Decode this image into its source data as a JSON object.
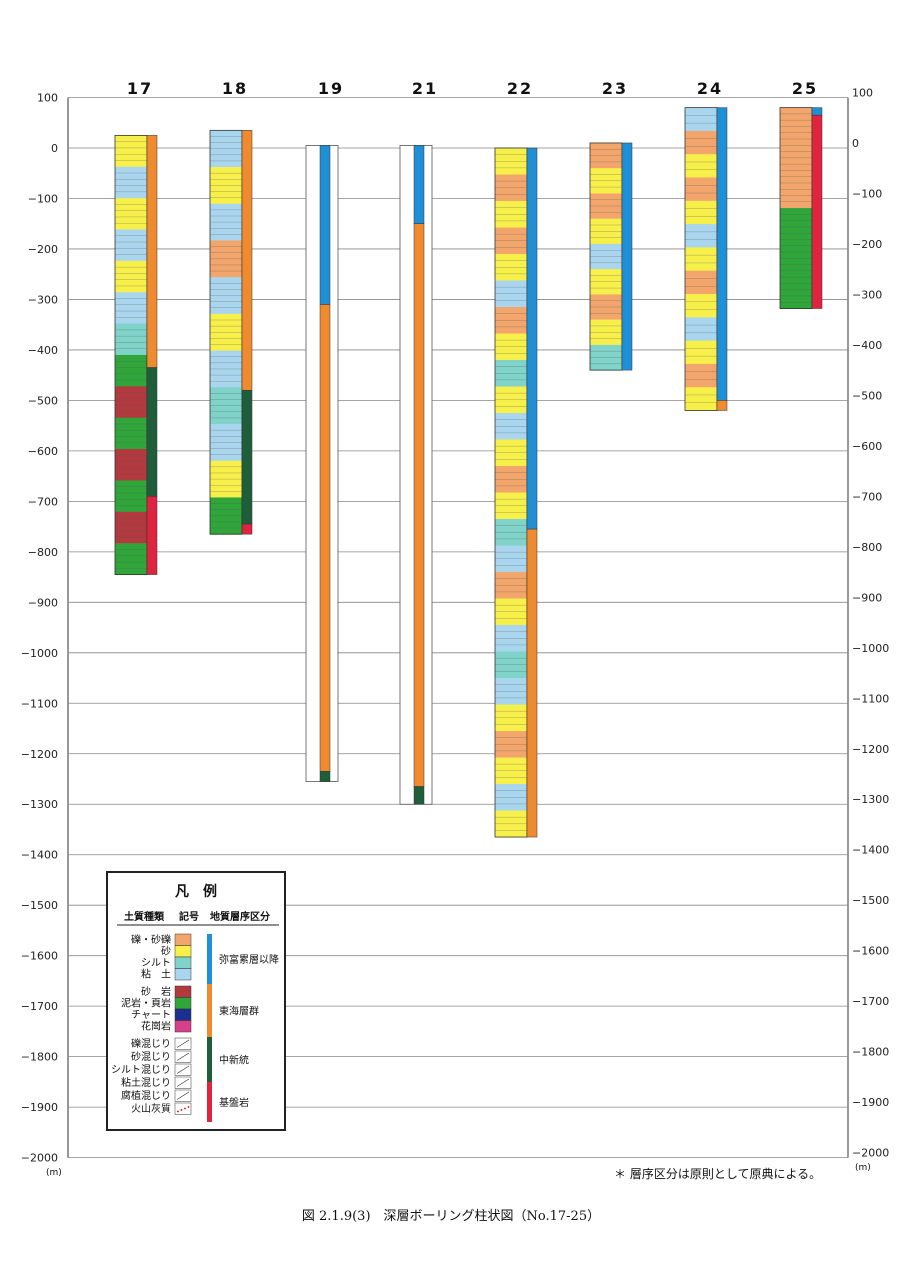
{
  "figure": {
    "caption": "図 2.1.9(3)　深層ボーリング柱状図（No.17-25）",
    "footnote": "＊ 層序区分は原則として原典による。",
    "unit_left": "(m)",
    "unit_right": "(m)"
  },
  "axis": {
    "ticks_left": [
      "100",
      "0",
      "−100",
      "−200",
      "−300",
      "−400",
      "−500",
      "−600",
      "−700",
      "−800",
      "−900",
      "−1000",
      "−1100",
      "−1200",
      "−1300",
      "−1400",
      "−1500",
      "−1600",
      "−1700",
      "−1800",
      "−1900",
      "−2000"
    ],
    "ticks_right": [
      "100",
      "0",
      "−100",
      "−200",
      "−300",
      "−400",
      "−500",
      "−600",
      "−700",
      "−800",
      "−900",
      "−1000",
      "−1100",
      "−1200",
      "−1300",
      "−1400",
      "−1500",
      "−1600",
      "−1700",
      "−1800",
      "−1900",
      "−2000"
    ],
    "tick_values": [
      100,
      0,
      -100,
      -200,
      -300,
      -400,
      -500,
      -600,
      -700,
      -800,
      -900,
      -1000,
      -1100,
      -1200,
      -1300,
      -1400,
      -1500,
      -1600,
      -1700,
      -1800,
      -1900,
      -2000
    ]
  },
  "colors": {
    "gravel": "#f2a66b",
    "sand": "#f7ef4a",
    "silt": "#7fd3c9",
    "clay": "#a9d6ee",
    "sandstone": "#b2393e",
    "mudstone": "#2fa53a",
    "chert": "#1a2f8f",
    "granite": "#d83f8b",
    "yatomi": "#1f8fd6",
    "tokai": "#f08a2e",
    "chushinto": "#1e5e3a",
    "kiban": "#e0233f"
  },
  "boreholes": [
    {
      "id": "17",
      "top": 25,
      "bottom": -845,
      "litho": [
        "sand",
        "clay",
        "sand",
        "clay",
        "sand",
        "clay",
        "silt",
        "mudstone",
        "sandstone",
        "mudstone",
        "sandstone",
        "mudstone",
        "sandstone",
        "mudstone"
      ],
      "strata": [
        {
          "unit": "tokai",
          "from": 25,
          "to": -435
        },
        {
          "unit": "chushinto",
          "from": -435,
          "to": -690
        },
        {
          "unit": "kiban",
          "from": -690,
          "to": -845
        }
      ]
    },
    {
      "id": "18",
      "top": 35,
      "bottom": -765,
      "litho": [
        "clay",
        "sand",
        "clay",
        "gravel",
        "clay",
        "sand",
        "clay",
        "silt",
        "clay",
        "sand",
        "mudstone"
      ],
      "strata": [
        {
          "unit": "tokai",
          "from": 35,
          "to": -480
        },
        {
          "unit": "chushinto",
          "from": -480,
          "to": -745
        },
        {
          "unit": "kiban",
          "from": -745,
          "to": -765
        }
      ]
    },
    {
      "id": "19",
      "top": 5,
      "bottom": -1255,
      "litho": [],
      "strata": [
        {
          "unit": "yatomi",
          "from": 5,
          "to": -310
        },
        {
          "unit": "tokai",
          "from": -310,
          "to": -1235
        },
        {
          "unit": "chushinto",
          "from": -1235,
          "to": -1255
        }
      ]
    },
    {
      "id": "21",
      "top": 5,
      "bottom": -1300,
      "litho": [],
      "strata": [
        {
          "unit": "yatomi",
          "from": 5,
          "to": -150
        },
        {
          "unit": "tokai",
          "from": -150,
          "to": -1265
        },
        {
          "unit": "chushinto",
          "from": -1265,
          "to": -1300
        }
      ]
    },
    {
      "id": "22",
      "top": 0,
      "bottom": -1365,
      "litho": [
        "sand",
        "gravel",
        "sand",
        "gravel",
        "sand",
        "clay",
        "gravel",
        "sand",
        "silt",
        "sand",
        "clay",
        "sand",
        "gravel",
        "sand",
        "silt",
        "clay",
        "gravel",
        "sand",
        "clay",
        "silt",
        "clay",
        "sand",
        "gravel",
        "sand",
        "clay",
        "sand"
      ],
      "strata": [
        {
          "unit": "yatomi",
          "from": 0,
          "to": -755
        },
        {
          "unit": "tokai",
          "from": -755,
          "to": -1365
        }
      ]
    },
    {
      "id": "23",
      "top": 10,
      "bottom": -440,
      "litho": [
        "gravel",
        "sand",
        "gravel",
        "sand",
        "clay",
        "sand",
        "gravel",
        "sand",
        "silt"
      ],
      "strata": [
        {
          "unit": "yatomi",
          "from": 10,
          "to": -440
        }
      ]
    },
    {
      "id": "24",
      "top": 80,
      "bottom": -520,
      "litho": [
        "clay",
        "gravel",
        "sand",
        "gravel",
        "sand",
        "clay",
        "sand",
        "gravel",
        "sand",
        "clay",
        "sand",
        "gravel",
        "sand"
      ],
      "strata": [
        {
          "unit": "yatomi",
          "from": 80,
          "to": -500
        },
        {
          "unit": "tokai",
          "from": -500,
          "to": -520
        }
      ]
    },
    {
      "id": "25",
      "top": 80,
      "bottom": -318,
      "litho": [
        "gravel",
        "mudstone"
      ],
      "strata": [
        {
          "unit": "yatomi",
          "from": 80,
          "to": 65
        },
        {
          "unit": "kiban",
          "from": 65,
          "to": -318
        }
      ]
    }
  ],
  "legend": {
    "title": "凡　例",
    "col1_header": "土質種類",
    "col2_header": "記号",
    "col3_header": "地質層序区分",
    "soil_types": [
      {
        "label": "礫・砂礫",
        "swatch": "gravel"
      },
      {
        "label": "砂",
        "swatch": "sand"
      },
      {
        "label": "シルト",
        "swatch": "silt"
      },
      {
        "label": "粘　土",
        "swatch": "clay"
      },
      {
        "label": "砂　岩",
        "swatch": "sandstone"
      },
      {
        "label": "泥岩・頁岩",
        "swatch": "mudstone"
      },
      {
        "label": "チャート",
        "swatch": "chert"
      },
      {
        "label": "花崗岩",
        "swatch": "granite"
      }
    ],
    "mixtures": [
      {
        "label": "礫混じり"
      },
      {
        "label": "砂混じり"
      },
      {
        "label": "シルト混じり"
      },
      {
        "label": "粘土混じり"
      },
      {
        "label": "腐植混じり"
      },
      {
        "label": "火山灰質"
      }
    ],
    "strata_units": [
      {
        "label": "弥富累層以降",
        "swatch": "yatomi"
      },
      {
        "label": "東海層群",
        "swatch": "tokai"
      },
      {
        "label": "中新統",
        "swatch": "chushinto"
      },
      {
        "label": "基盤岩",
        "swatch": "kiban"
      }
    ]
  }
}
